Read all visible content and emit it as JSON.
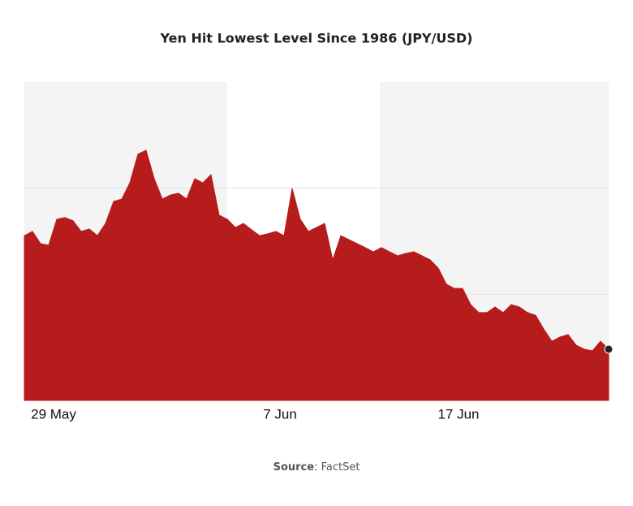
{
  "chart_data": {
    "type": "area",
    "title": "Yen Hit Lowest Level Since 1986 (JPY/USD)",
    "x": [
      0,
      1,
      2,
      3,
      4,
      5,
      6,
      7,
      8,
      9,
      10,
      11,
      12,
      13,
      14,
      15,
      16,
      17,
      18,
      19,
      20,
      21,
      22,
      23,
      24,
      25,
      26,
      27,
      28,
      29,
      30,
      31,
      32,
      33,
      34,
      35,
      36,
      37,
      38,
      39,
      40,
      41,
      42,
      43,
      44,
      45,
      46,
      47,
      48,
      49,
      50,
      51,
      52,
      53,
      54,
      55,
      56,
      57,
      58,
      59,
      60,
      61,
      62,
      63,
      64,
      65,
      66,
      67,
      68,
      69,
      70,
      71,
      72
    ],
    "values": [
      0.0063821,
      0.0063837,
      0.0063791,
      0.0063785,
      0.0063883,
      0.0063889,
      0.0063877,
      0.0063837,
      0.0063846,
      0.0063821,
      0.0063867,
      0.006395,
      0.0063959,
      0.006402,
      0.0064128,
      0.0064143,
      0.0064036,
      0.0063959,
      0.0063974,
      0.0063981,
      0.0063959,
      0.0064036,
      0.006402,
      0.0064051,
      0.0063898,
      0.0063883,
      0.0063852,
      0.0063867,
      0.0063843,
      0.0063821,
      0.0063828,
      0.0063837,
      0.0063821,
      0.0063999,
      0.0063883,
      0.0063837,
      0.0063852,
      0.0063867,
      0.006373,
      0.0063821,
      0.0063806,
      0.0063791,
      0.0063776,
      0.006376,
      0.0063776,
      0.006376,
      0.0063745,
      0.0063754,
      0.006376,
      0.0063745,
      0.006373,
      0.0063699,
      0.0063638,
      0.0063622,
      0.0063622,
      0.0063561,
      0.0063531,
      0.0063531,
      0.0063552,
      0.0063531,
      0.0063561,
      0.0063552,
      0.0063531,
      0.0063521,
      0.0063469,
      0.0063423,
      0.0063439,
      0.0063448,
      0.0063408,
      0.0063393,
      0.0063387,
      0.0063423,
      0.0063393
    ],
    "color": "#b71c1c",
    "xlim": [
      0,
      72
    ],
    "xticks": [
      {
        "value": 3.6,
        "label": "29 May"
      },
      {
        "value": 31.5,
        "label": "7 Jun"
      },
      {
        "value": 53.5,
        "label": "17 Jun"
      }
    ],
    "ylim": [
      0.00632,
      0.00644
    ],
    "ygrid": [
      0.0064,
      0.00636
    ],
    "grid": true,
    "source_label": "Source",
    "source_text": ": FactSet"
  }
}
